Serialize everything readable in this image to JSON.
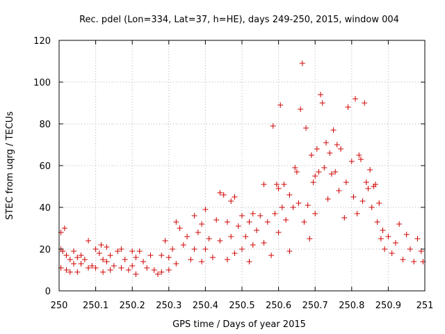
{
  "chart_data": {
    "type": "scatter",
    "title": "Rec. pdel (Lon=334, Lat=37, h=HE), days 249-250, 2015, window 004",
    "xlabel": "GPS time / Days of year 2015",
    "ylabel": "STEC from uqrg / TECUs",
    "xlim": [
      250,
      251
    ],
    "ylim": [
      0,
      120
    ],
    "xticks": [
      "250",
      "250.1",
      "250.2",
      "250.3",
      "250.4",
      "250.5",
      "250.6",
      "250.7",
      "250.8",
      "250.9",
      "251"
    ],
    "yticks": [
      "0",
      "20",
      "40",
      "60",
      "80",
      "100",
      "120"
    ],
    "grid": true,
    "marker": "+",
    "marker_color": "#d00000",
    "series": [
      {
        "points": [
          [
            250.005,
            28
          ],
          [
            250.005,
            20
          ],
          [
            250.005,
            11
          ],
          [
            250.01,
            19
          ],
          [
            250.015,
            30
          ],
          [
            250.02,
            17
          ],
          [
            250.02,
            10
          ],
          [
            250.03,
            15
          ],
          [
            250.03,
            9
          ],
          [
            250.04,
            19
          ],
          [
            250.04,
            13
          ],
          [
            250.05,
            16
          ],
          [
            250.05,
            9
          ],
          [
            250.06,
            17
          ],
          [
            250.06,
            13
          ],
          [
            250.07,
            15
          ],
          [
            250.08,
            24
          ],
          [
            250.08,
            11
          ],
          [
            250.09,
            12
          ],
          [
            250.1,
            20
          ],
          [
            250.1,
            11
          ],
          [
            250.11,
            18
          ],
          [
            250.115,
            22
          ],
          [
            250.12,
            15
          ],
          [
            250.12,
            9
          ],
          [
            250.13,
            21
          ],
          [
            250.13,
            14
          ],
          [
            250.14,
            17
          ],
          [
            250.14,
            10
          ],
          [
            250.15,
            12
          ],
          [
            250.16,
            19
          ],
          [
            250.17,
            20
          ],
          [
            250.17,
            11
          ],
          [
            250.18,
            15
          ],
          [
            250.19,
            10
          ],
          [
            250.2,
            19
          ],
          [
            250.2,
            12
          ],
          [
            250.21,
            16
          ],
          [
            250.21,
            8
          ],
          [
            250.22,
            19
          ],
          [
            250.23,
            14
          ],
          [
            250.24,
            11
          ],
          [
            250.25,
            17
          ],
          [
            250.26,
            10
          ],
          [
            250.27,
            8
          ],
          [
            250.28,
            17
          ],
          [
            250.28,
            9
          ],
          [
            250.29,
            24
          ],
          [
            250.3,
            16
          ],
          [
            250.3,
            10
          ],
          [
            250.31,
            20
          ],
          [
            250.32,
            33
          ],
          [
            250.32,
            13
          ],
          [
            250.33,
            30
          ],
          [
            250.34,
            22
          ],
          [
            250.35,
            26
          ],
          [
            250.36,
            15
          ],
          [
            250.37,
            36
          ],
          [
            250.37,
            20
          ],
          [
            250.38,
            28
          ],
          [
            250.39,
            32
          ],
          [
            250.39,
            14
          ],
          [
            250.4,
            39
          ],
          [
            250.4,
            20
          ],
          [
            250.41,
            25
          ],
          [
            250.42,
            16
          ],
          [
            250.43,
            34
          ],
          [
            250.44,
            47
          ],
          [
            250.44,
            24
          ],
          [
            250.45,
            46
          ],
          [
            250.46,
            33
          ],
          [
            250.46,
            15
          ],
          [
            250.47,
            43
          ],
          [
            250.47,
            26
          ],
          [
            250.48,
            45
          ],
          [
            250.48,
            18
          ],
          [
            250.49,
            31
          ],
          [
            250.5,
            36
          ],
          [
            250.5,
            20
          ],
          [
            250.51,
            26
          ],
          [
            250.52,
            33
          ],
          [
            250.52,
            14
          ],
          [
            250.53,
            37
          ],
          [
            250.53,
            22
          ],
          [
            250.54,
            29
          ],
          [
            250.55,
            36
          ],
          [
            250.56,
            51
          ],
          [
            250.56,
            23
          ],
          [
            250.57,
            33
          ],
          [
            250.58,
            17
          ],
          [
            250.585,
            79
          ],
          [
            250.59,
            37
          ],
          [
            250.595,
            51
          ],
          [
            250.6,
            49
          ],
          [
            250.6,
            28
          ],
          [
            250.605,
            89
          ],
          [
            250.61,
            40
          ],
          [
            250.615,
            51
          ],
          [
            250.62,
            34
          ],
          [
            250.63,
            46
          ],
          [
            250.63,
            19
          ],
          [
            250.64,
            40
          ],
          [
            250.645,
            59
          ],
          [
            250.65,
            57
          ],
          [
            250.655,
            42
          ],
          [
            250.66,
            87
          ],
          [
            250.665,
            109
          ],
          [
            250.67,
            33
          ],
          [
            250.675,
            78
          ],
          [
            250.68,
            41
          ],
          [
            250.685,
            25
          ],
          [
            250.69,
            65
          ],
          [
            250.695,
            52
          ],
          [
            250.7,
            55
          ],
          [
            250.7,
            37
          ],
          [
            250.705,
            68
          ],
          [
            250.71,
            57
          ],
          [
            250.715,
            94
          ],
          [
            250.72,
            90
          ],
          [
            250.725,
            59
          ],
          [
            250.73,
            71
          ],
          [
            250.735,
            44
          ],
          [
            250.74,
            66
          ],
          [
            250.745,
            56
          ],
          [
            250.75,
            77
          ],
          [
            250.755,
            57
          ],
          [
            250.76,
            70
          ],
          [
            250.765,
            48
          ],
          [
            250.77,
            68
          ],
          [
            250.78,
            35
          ],
          [
            250.785,
            52
          ],
          [
            250.79,
            88
          ],
          [
            250.8,
            62
          ],
          [
            250.805,
            45
          ],
          [
            250.81,
            92
          ],
          [
            250.815,
            37
          ],
          [
            250.82,
            65
          ],
          [
            250.825,
            63
          ],
          [
            250.83,
            43
          ],
          [
            250.835,
            90
          ],
          [
            250.84,
            52
          ],
          [
            250.845,
            49
          ],
          [
            250.85,
            58
          ],
          [
            250.855,
            40
          ],
          [
            250.86,
            50
          ],
          [
            250.865,
            51
          ],
          [
            250.87,
            33
          ],
          [
            250.875,
            42
          ],
          [
            250.88,
            25
          ],
          [
            250.885,
            29
          ],
          [
            250.89,
            20
          ],
          [
            250.9,
            26
          ],
          [
            250.91,
            18
          ],
          [
            250.92,
            23
          ],
          [
            250.93,
            32
          ],
          [
            250.94,
            15
          ],
          [
            250.95,
            27
          ],
          [
            250.96,
            20
          ],
          [
            250.97,
            14
          ],
          [
            250.98,
            25
          ],
          [
            250.99,
            19
          ],
          [
            250.995,
            14
          ]
        ]
      }
    ]
  }
}
